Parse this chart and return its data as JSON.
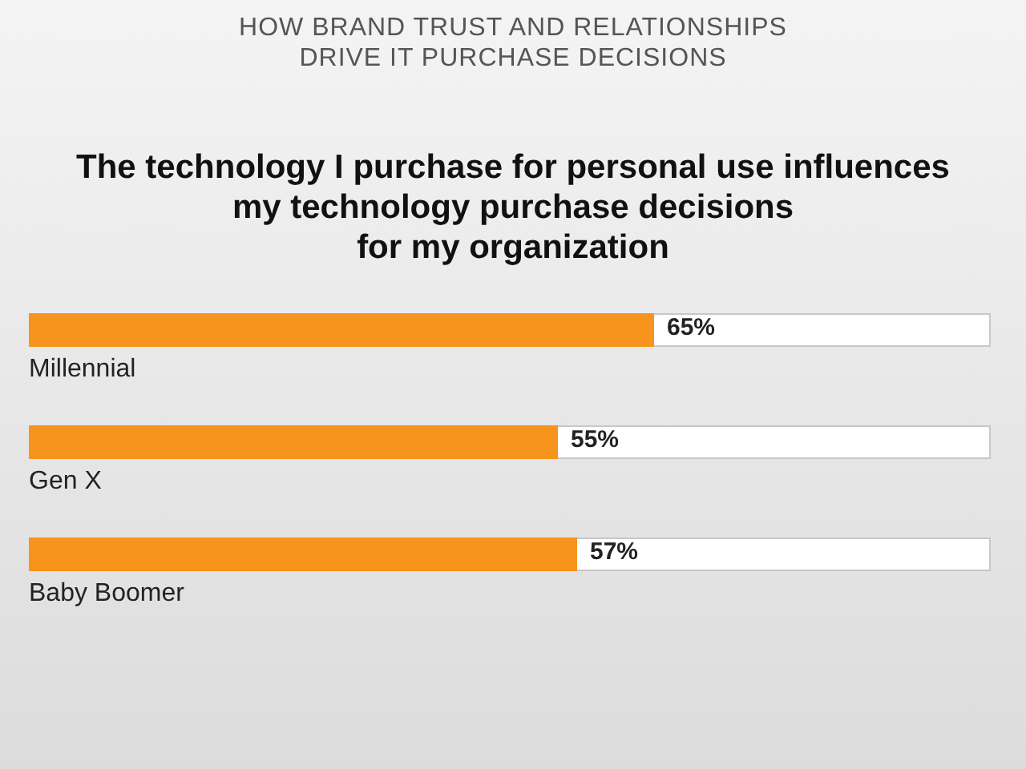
{
  "chart_data": {
    "type": "bar",
    "orientation": "horizontal",
    "title": "HOW BRAND TRUST AND RELATIONSHIPS\nDRIVE IT PURCHASE DECISIONS",
    "subtitle": "The technology I purchase for personal use influences\nmy technology purchase decisions\nfor my organization",
    "categories": [
      "Millennial",
      "Gen X",
      "Baby Boomer"
    ],
    "values": [
      65,
      55,
      57
    ],
    "value_labels": [
      "65%",
      "55%",
      "57%"
    ],
    "color": "#f7941d",
    "xlim": [
      0,
      100
    ],
    "tick_labels": false,
    "legend": false
  }
}
